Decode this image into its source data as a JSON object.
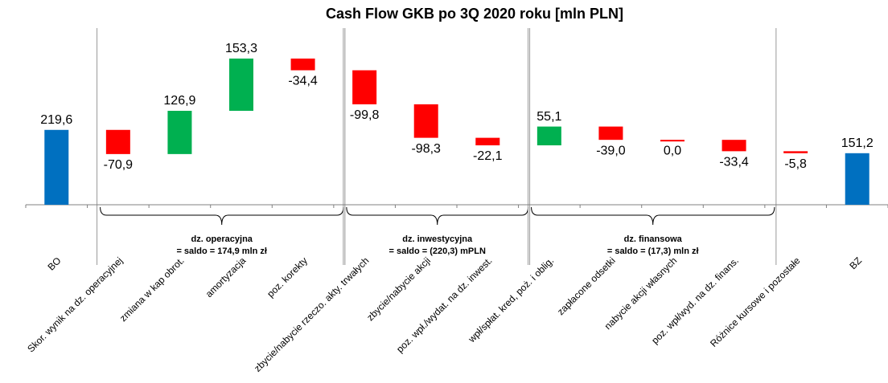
{
  "chart_data": {
    "type": "waterfall",
    "title": "Cash Flow GKB po 3Q 2020 roku [mln PLN]",
    "categories": [
      "BO",
      "Skor. wynik na dz. operacyjnej",
      "zmiana w kap obrot.",
      "amortyzacja",
      "poz. korekty",
      "zbycie/nabycie rzeczo. akty. trwałych",
      "zbycie/nabycie akcji",
      "poz. wpł./wydat. na dz. inwest.",
      "wpł/spłat. kred, poż. i oblig.",
      "zapłacone odsetki",
      "nabycie akcji własnych",
      "poz. wpł/wyd. na dz. finans.",
      "Różnice kursowe i pozostałe",
      "BZ"
    ],
    "values": [
      219.6,
      -70.9,
      126.9,
      153.3,
      -34.4,
      -99.8,
      -98.3,
      -22.1,
      55.1,
      -39.0,
      0.0,
      -33.4,
      -5.8,
      151.2
    ],
    "value_labels": [
      "219,6",
      "-70,9",
      "126,9",
      "153,3",
      "-34,4",
      "-99,8",
      "-98,3",
      "-22,1",
      "55,1",
      "-39,0",
      "0,0",
      "-33,4",
      "-5,8",
      "151,2"
    ],
    "totals": [
      0,
      13
    ],
    "colors": [
      "#0070c0",
      "#ff0000",
      "#00b050",
      "#00b050",
      "#ff0000",
      "#ff0000",
      "#ff0000",
      "#ff0000",
      "#00b050",
      "#ff0000",
      "#ff0000",
      "#ff0000",
      "#ff0000",
      "#0070c0"
    ],
    "ylim": [
      0,
      530
    ],
    "groups": [
      {
        "name": "dz. operacyjna",
        "saldo": "= saldo =  174,9 mln zł",
        "first": 1,
        "last": 4
      },
      {
        "name": "dz. inwestycyjna",
        "saldo": "= saldo = (220,3) mPLN",
        "first": 5,
        "last": 7
      },
      {
        "name": "dz. finansowa",
        "saldo": "= saldo =  (17,3) mln zł",
        "first": 8,
        "last": 11
      }
    ]
  }
}
